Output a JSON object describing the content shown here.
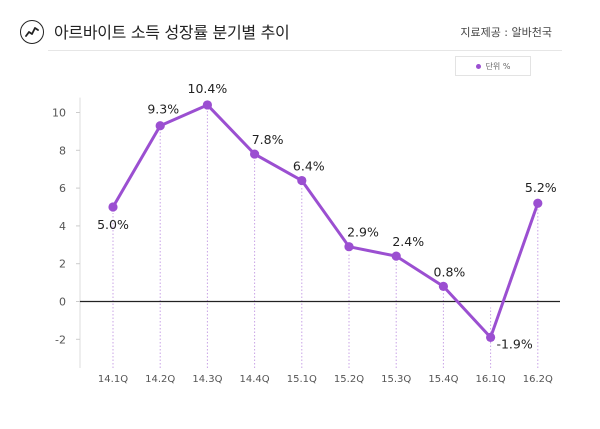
{
  "header": {
    "icon": "trend-line-icon",
    "title": "아르바이트 소득 성장률 분기별 추이",
    "source": "지료제공 : 알바천국"
  },
  "legend": {
    "label": "단위 %",
    "color": "#9b4fd1"
  },
  "colors": {
    "line": "#9b4fd1",
    "point": "#9b4fd1",
    "zero_line": "#222222",
    "axis_text": "#555555",
    "guide": "#c9a3e6"
  },
  "chart_data": {
    "type": "line",
    "title": "아르바이트 소득 성장률 분기별 추이",
    "xlabel": "",
    "ylabel": "",
    "categories": [
      "14.1Q",
      "14.2Q",
      "14.3Q",
      "14.4Q",
      "15.1Q",
      "15.2Q",
      "15.3Q",
      "15.4Q",
      "16.1Q",
      "16.2Q"
    ],
    "series": [
      {
        "values": [
          5.0,
          9.3,
          10.4,
          7.8,
          6.4,
          2.9,
          2.4,
          0.8,
          -1.9,
          5.2
        ],
        "data_labels": [
          "5.0%",
          "9.3%",
          "10.4%",
          "7.8%",
          "6.4%",
          "2.9%",
          "2.4%",
          "0.8%",
          "-1.9%",
          "5.2%"
        ]
      }
    ],
    "yticks": [
      10,
      8,
      6,
      4,
      2,
      0,
      -2
    ],
    "ylim": [
      -3.5,
      11
    ],
    "grid": false,
    "legend_position": "top-right"
  }
}
